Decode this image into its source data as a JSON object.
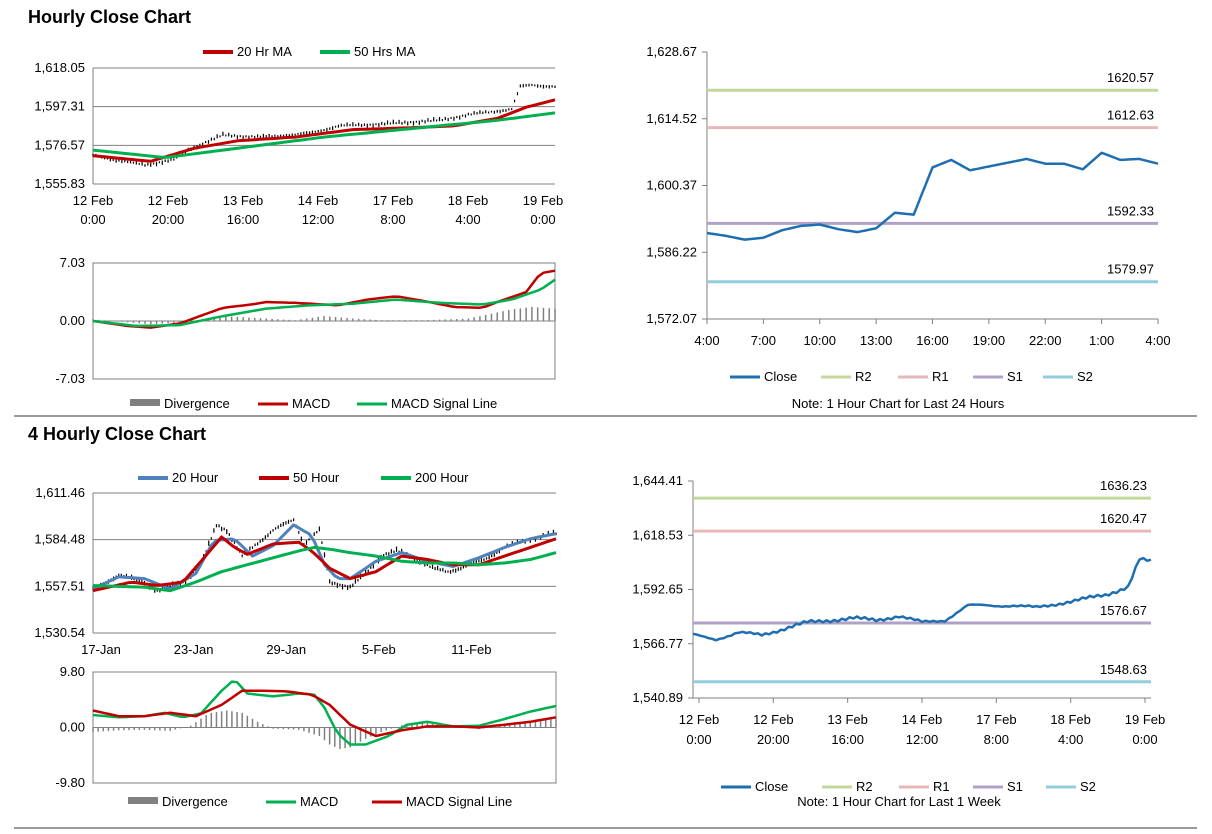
{
  "sections": [
    {
      "title": "Hourly Close Chart"
    },
    {
      "title": "4 Hourly Close Chart"
    }
  ],
  "colors": {
    "ma_short": "#c00000",
    "ma_mid": "#00b050",
    "ma_blue": "#4f81bd",
    "price": "#000000",
    "divergence": "#808080",
    "close": "#1f6fb0",
    "r2": "#c4d79b",
    "r1": "#e6b9b8",
    "s1": "#b1a0c7",
    "s2": "#92cddc"
  },
  "chart_data": [
    {
      "id": "hourly-ma",
      "type": "line",
      "title": "Hourly Close Chart",
      "legend": [
        "20 Hr MA",
        "50 Hrs MA"
      ],
      "y_ticks": [
        "1,618.05",
        "1,597.31",
        "1,576.57",
        "1,555.83"
      ],
      "ylim": [
        1555.83,
        1618.05
      ],
      "x_ticks": [
        [
          "12 Feb",
          "0:00"
        ],
        [
          "12 Feb",
          "20:00"
        ],
        [
          "13 Feb",
          "16:00"
        ],
        [
          "14 Feb",
          "12:00"
        ],
        [
          "17 Feb",
          "8:00"
        ],
        [
          "18 Feb",
          "4:00"
        ],
        [
          "19 Feb",
          "0:00"
        ]
      ],
      "n": 160,
      "price": {
        "t": [
          0,
          18,
          28,
          34,
          45,
          58,
          75,
          85,
          100,
          120,
          130,
          145,
          148,
          152,
          160
        ],
        "v": [
          1571,
          1566,
          1569,
          1575,
          1582,
          1581,
          1583,
          1587,
          1588,
          1590,
          1593,
          1596,
          1608,
          1609,
          1608
        ]
      },
      "series": [
        {
          "name": "20 Hr MA",
          "t": [
            0,
            20,
            35,
            50,
            70,
            90,
            110,
            125,
            140,
            150,
            160
          ],
          "v": [
            1571,
            1568,
            1575,
            1579,
            1581,
            1585,
            1586,
            1587,
            1591,
            1597,
            1601
          ]
        },
        {
          "name": "50 Hrs MA",
          "t": [
            0,
            25,
            40,
            60,
            80,
            100,
            120,
            140,
            160
          ],
          "v": [
            1574,
            1570,
            1573,
            1577,
            1581,
            1584,
            1587,
            1590,
            1594
          ]
        }
      ]
    },
    {
      "id": "hourly-macd",
      "type": "line",
      "y_ticks": [
        "7.03",
        "0.00",
        "-7.03"
      ],
      "ylim": [
        -7.03,
        7.03
      ],
      "legend": [
        "Divergence",
        "MACD",
        "MACD Signal Line"
      ],
      "n": 160,
      "divergence": {
        "t": [
          0,
          20,
          30,
          45,
          55,
          70,
          80,
          90,
          100,
          115,
          130,
          145,
          152,
          160
        ],
        "v": [
          0.2,
          -0.4,
          -0.2,
          0.6,
          0.4,
          0.1,
          0.6,
          0.3,
          0.1,
          0.1,
          0.3,
          1.4,
          1.7,
          1.5
        ]
      },
      "series": [
        {
          "name": "MACD",
          "t": [
            0,
            12,
            20,
            30,
            45,
            55,
            60,
            70,
            80,
            85,
            95,
            105,
            115,
            125,
            135,
            140,
            150,
            155,
            160
          ],
          "v": [
            0,
            -0.6,
            -0.8,
            -0.3,
            1.6,
            2.0,
            2.3,
            2.2,
            2.0,
            1.9,
            2.6,
            3.0,
            2.4,
            1.7,
            1.6,
            2.3,
            3.5,
            5.8,
            6.1
          ]
        },
        {
          "name": "MACD Signal Line",
          "t": [
            0,
            15,
            30,
            45,
            60,
            75,
            90,
            105,
            120,
            135,
            145,
            155,
            160
          ],
          "v": [
            0,
            -0.6,
            -0.5,
            0.6,
            1.5,
            1.9,
            2.1,
            2.6,
            2.2,
            2.0,
            2.6,
            3.8,
            5.0
          ]
        }
      ]
    },
    {
      "id": "hourly-pivot",
      "type": "line",
      "ylim": [
        1572.07,
        1628.67
      ],
      "y_ticks": [
        "1,628.67",
        "1,614.52",
        "1,600.37",
        "1,586.22",
        "1,572.07"
      ],
      "x_ticks": [
        "4:00",
        "7:00",
        "10:00",
        "13:00",
        "16:00",
        "19:00",
        "22:00",
        "1:00",
        "4:00"
      ],
      "levels": [
        {
          "name": "R2",
          "value": 1620.57,
          "label": "1620.57"
        },
        {
          "name": "R1",
          "value": 1612.63,
          "label": "1612.63"
        },
        {
          "name": "S1",
          "value": 1592.33,
          "label": "1592.33"
        },
        {
          "name": "S2",
          "value": 1579.97,
          "label": "1579.97"
        }
      ],
      "close": {
        "t": [
          0,
          1,
          2,
          3,
          4,
          5,
          6,
          7,
          8,
          9,
          10,
          11,
          12,
          13,
          14,
          15,
          16,
          17,
          18,
          19,
          20,
          21,
          22,
          23,
          24
        ],
        "v": [
          1590.3,
          1589.7,
          1588.9,
          1589.3,
          1590.9,
          1591.8,
          1592.1,
          1591.1,
          1590.5,
          1591.3,
          1594.6,
          1594.2,
          1604.2,
          1605.8,
          1603.6,
          1604.4,
          1605.2,
          1606.0,
          1605.0,
          1605.0,
          1603.8,
          1607.3,
          1605.8,
          1606.0,
          1605.0
        ]
      },
      "legend": [
        "Close",
        "R2",
        "R1",
        "S1",
        "S2"
      ],
      "note": "Note: 1 Hour Chart for Last 24 Hours"
    },
    {
      "id": "four-hour-ma",
      "type": "line",
      "legend": [
        "20 Hour",
        "50 Hour",
        "200 Hour"
      ],
      "y_ticks": [
        "1,611.46",
        "1,584.48",
        "1,557.51",
        "1,530.54"
      ],
      "ylim": [
        1530.54,
        1611.46
      ],
      "x_ticks": [
        "17-Jan",
        "23-Jan",
        "29-Jan",
        "5-Feb",
        "11-Feb"
      ],
      "n": 180,
      "price": {
        "t": [
          0,
          10,
          20,
          25,
          35,
          42,
          48,
          52,
          58,
          62,
          70,
          78,
          82,
          88,
          92,
          100,
          106,
          112,
          118,
          125,
          132,
          138,
          145,
          152,
          160,
          170,
          180
        ],
        "v": [
          1556,
          1564,
          1560,
          1555,
          1560,
          1570,
          1593,
          1590,
          1575,
          1580,
          1590,
          1596,
          1582,
          1590,
          1560,
          1557,
          1565,
          1575,
          1578,
          1574,
          1568,
          1566,
          1569,
          1573,
          1580,
          1585,
          1588
        ]
      },
      "series": [
        {
          "name": "20 Hour",
          "t": [
            0,
            10,
            20,
            30,
            40,
            47,
            55,
            62,
            70,
            78,
            85,
            90,
            95,
            100,
            110,
            120,
            130,
            140,
            150,
            160,
            170,
            180
          ],
          "v": [
            1556,
            1563,
            1562,
            1556,
            1565,
            1584,
            1585,
            1575,
            1581,
            1593,
            1587,
            1570,
            1562,
            1562,
            1572,
            1577,
            1572,
            1569,
            1574,
            1580,
            1585,
            1588
          ]
        },
        {
          "name": "50 Hour",
          "t": [
            0,
            15,
            25,
            35,
            42,
            50,
            55,
            60,
            70,
            80,
            85,
            92,
            100,
            110,
            120,
            130,
            140,
            150,
            160,
            170,
            180
          ],
          "v": [
            1555,
            1560,
            1558,
            1560,
            1572,
            1586,
            1580,
            1576,
            1582,
            1583,
            1578,
            1568,
            1562,
            1566,
            1575,
            1573,
            1570,
            1570,
            1575,
            1580,
            1585
          ]
        },
        {
          "name": "200 Hour",
          "t": [
            0,
            20,
            30,
            40,
            50,
            60,
            70,
            80,
            86,
            92,
            100,
            110,
            120,
            130,
            140,
            150,
            160,
            170,
            180
          ],
          "v": [
            1558,
            1557,
            1555,
            1560,
            1566,
            1570,
            1574,
            1578,
            1580,
            1579,
            1577,
            1575,
            1572,
            1571,
            1571,
            1570,
            1571,
            1573,
            1577
          ]
        }
      ]
    },
    {
      "id": "four-hour-macd",
      "type": "line",
      "y_ticks": [
        "9.80",
        "0.00",
        "-9.80"
      ],
      "ylim": [
        -9.8,
        9.8
      ],
      "legend": [
        "Divergence",
        "MACD",
        "MACD Signal Line"
      ],
      "n": 180,
      "divergence": {
        "t": [
          0,
          10,
          20,
          30,
          38,
          45,
          52,
          58,
          64,
          70,
          80,
          88,
          92,
          96,
          100,
          106,
          112,
          120,
          130,
          140,
          150,
          160,
          170,
          180
        ],
        "v": [
          -0.8,
          -0.5,
          -0.4,
          -0.6,
          0.3,
          2.5,
          3.0,
          2.6,
          1.0,
          -0.2,
          -0.4,
          -1.5,
          -3.0,
          -3.8,
          -3.5,
          -2.0,
          -0.8,
          0.4,
          0.8,
          0.3,
          -0.3,
          0.3,
          1.2,
          1.6
        ]
      },
      "series": [
        {
          "name": "MACD",
          "t": [
            0,
            10,
            20,
            28,
            35,
            42,
            50,
            55,
            60,
            70,
            80,
            86,
            90,
            95,
            100,
            106,
            115,
            122,
            130,
            140,
            150,
            160,
            170,
            180
          ],
          "v": [
            2.2,
            1.8,
            2.0,
            2.6,
            1.8,
            2.5,
            6.5,
            8.5,
            6.0,
            5.5,
            6.0,
            5.8,
            3.5,
            -1.0,
            -3.0,
            -3.0,
            -1.5,
            0.5,
            1.0,
            0.2,
            0.3,
            1.5,
            2.8,
            3.8
          ]
        },
        {
          "name": "MACD Signal Line",
          "t": [
            0,
            10,
            20,
            30,
            40,
            50,
            58,
            65,
            75,
            85,
            92,
            100,
            110,
            120,
            130,
            140,
            150,
            160,
            170,
            180
          ],
          "v": [
            3.0,
            2.0,
            2.0,
            2.6,
            2.0,
            4.0,
            6.5,
            6.5,
            6.4,
            5.8,
            4.0,
            0.5,
            -1.5,
            -0.5,
            0.2,
            0.2,
            0.0,
            0.5,
            1.0,
            1.8
          ]
        }
      ]
    },
    {
      "id": "four-hour-pivot",
      "type": "line",
      "ylim": [
        1540.89,
        1644.41
      ],
      "y_ticks": [
        "1,644.41",
        "1,618.53",
        "1,592.65",
        "1,566.77",
        "1,540.89"
      ],
      "x_ticks": [
        [
          "12 Feb",
          "0:00"
        ],
        [
          "12 Feb",
          "20:00"
        ],
        [
          "13 Feb",
          "16:00"
        ],
        [
          "14 Feb",
          "12:00"
        ],
        [
          "17 Feb",
          "8:00"
        ],
        [
          "18 Feb",
          "4:00"
        ],
        [
          "19 Feb",
          "0:00"
        ]
      ],
      "levels": [
        {
          "name": "R2",
          "value": 1636.23,
          "label": "1636.23"
        },
        {
          "name": "R1",
          "value": 1620.47,
          "label": "1620.47"
        },
        {
          "name": "S1",
          "value": 1576.67,
          "label": "1576.67"
        },
        {
          "name": "S2",
          "value": 1548.63,
          "label": "1548.63"
        }
      ],
      "close": {
        "t": [
          0,
          8,
          16,
          24,
          32,
          40,
          48,
          56,
          64,
          72,
          80,
          88,
          96,
          104,
          112,
          120,
          128,
          136,
          144,
          152,
          156,
          160
        ],
        "v": [
          1571,
          1569,
          1572,
          1571,
          1574,
          1577,
          1578,
          1579,
          1578,
          1580,
          1577,
          1578,
          1585,
          1585,
          1585,
          1584,
          1586,
          1588,
          1590,
          1594,
          1607,
          1606
        ]
      },
      "legend": [
        "Close",
        "R2",
        "R1",
        "S1",
        "S2"
      ],
      "note": "Note: 1 Hour Chart for Last 1 Week"
    }
  ]
}
